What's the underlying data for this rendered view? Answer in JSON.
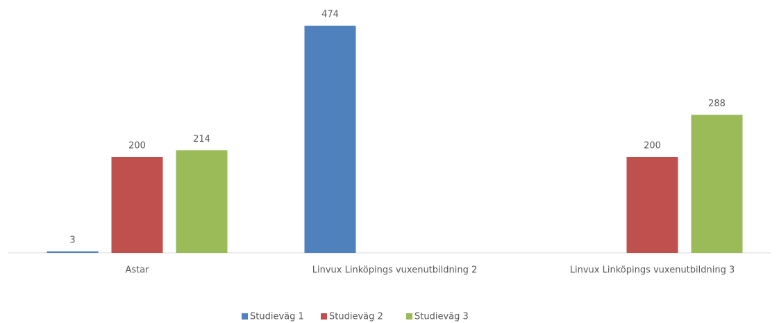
{
  "chart_data": {
    "type": "bar",
    "categories": [
      "Astar",
      "Linvux Linköpings vuxenutbildning 2",
      "Linvux Linköpings vuxenutbildning 3"
    ],
    "series": [
      {
        "name": "Studieväg 1",
        "color": "#4f81bd",
        "values": [
          3,
          474,
          null
        ]
      },
      {
        "name": "Studieväg 2",
        "color": "#c0504d",
        "values": [
          200,
          null,
          200
        ]
      },
      {
        "name": "Studieväg 3",
        "color": "#9bbb59",
        "values": [
          214,
          null,
          288
        ]
      }
    ],
    "ylim": [
      0,
      500
    ],
    "legend": "bottom"
  }
}
